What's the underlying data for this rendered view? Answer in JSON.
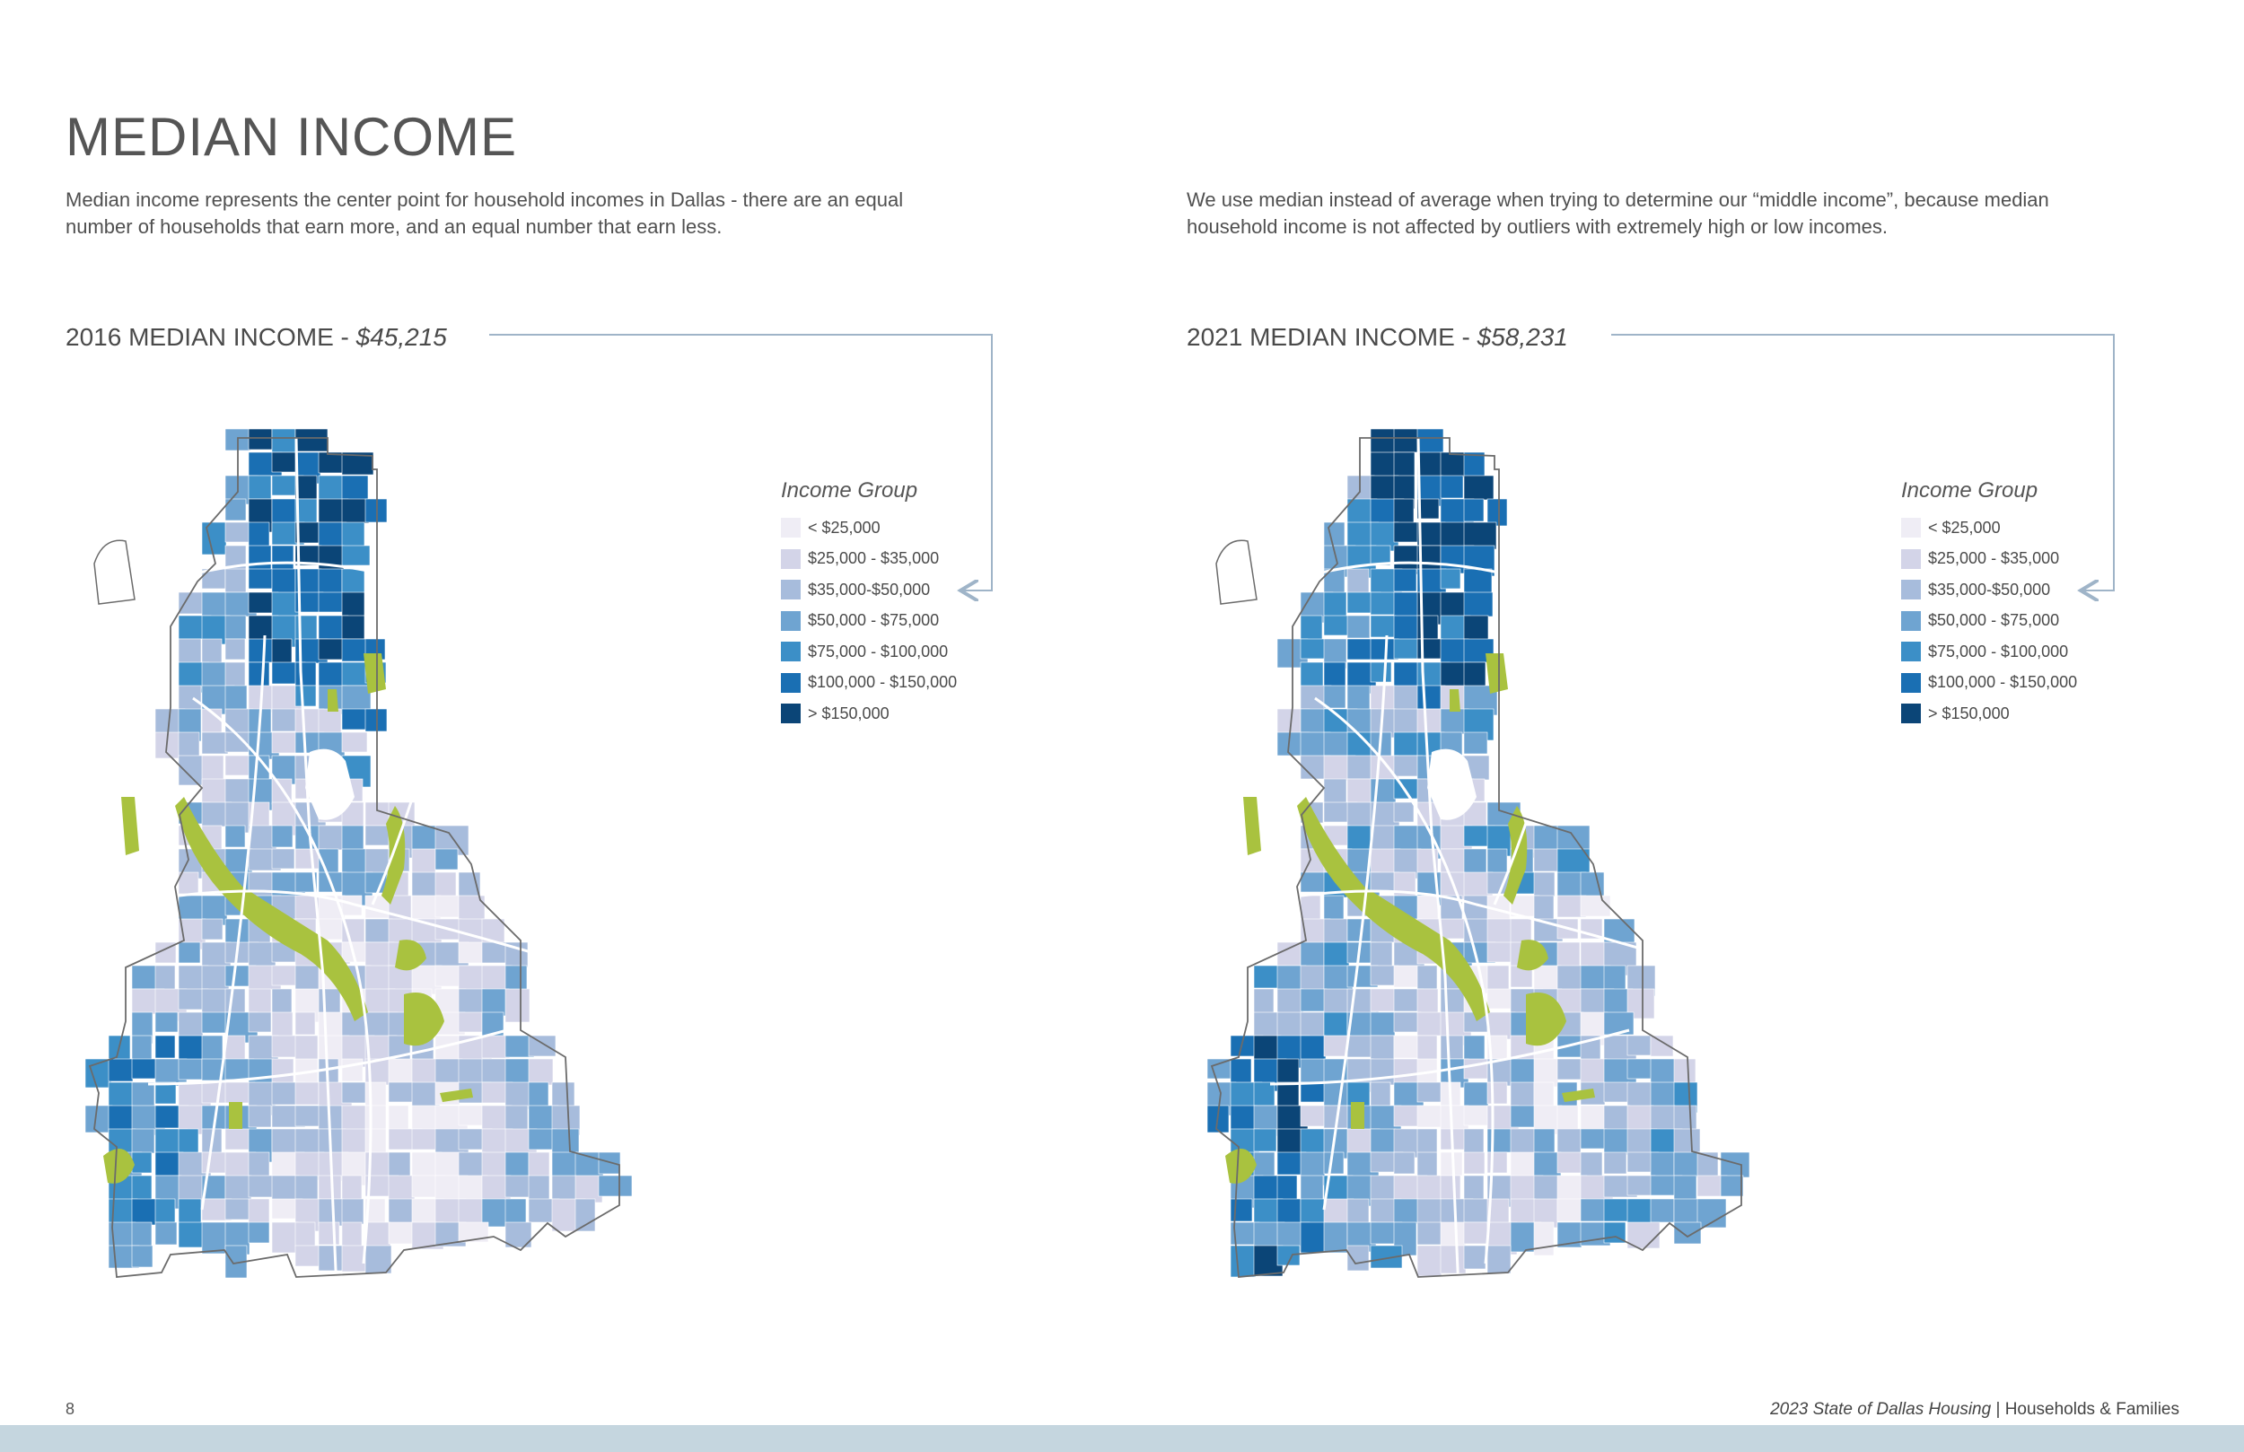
{
  "page": {
    "title": "MEDIAN INCOME",
    "intro_left": "Median income represents the center point for household incomes in Dallas - there are an equal number of households that earn more, and an equal number that earn less.",
    "intro_right": "We use median instead of average when trying to determine our “middle income”, because median household income is not affected by outliers with extremely high or low incomes.",
    "page_number": "8",
    "footer_publication": "2023 State of Dallas Housing",
    "footer_separator": " | ",
    "footer_section": "Households & Families"
  },
  "maps": [
    {
      "label": "2016 MEDIAN INCOME  - ",
      "value": "$45,215",
      "shade_bias": 0
    },
    {
      "label": "2021 MEDIAN INCOME - ",
      "value": "$58,231",
      "shade_bias": 1
    }
  ],
  "legend": {
    "title": "Income Group",
    "items": [
      {
        "label": "< $25,000",
        "color": "#efedf5"
      },
      {
        "label": "$25,000 - $35,000",
        "color": "#d3d4e8"
      },
      {
        "label": "$35,000-$50,000",
        "color": "#a7bcdc"
      },
      {
        "label": "$50,000 - $75,000",
        "color": "#6fa4d1"
      },
      {
        "label": "$75,000 - $100,000",
        "color": "#3c8fc7"
      },
      {
        "label": "$100,000 - $150,000",
        "color": "#1a6fb3"
      },
      {
        "label": "> $150,000",
        "color": "#0b4577"
      }
    ]
  },
  "colors": {
    "park": "#a9c23f",
    "road": "#ffffff",
    "boundary": "#6b6b6b",
    "connector": "#9fb4c8",
    "footer_band": "#c5d6df"
  }
}
